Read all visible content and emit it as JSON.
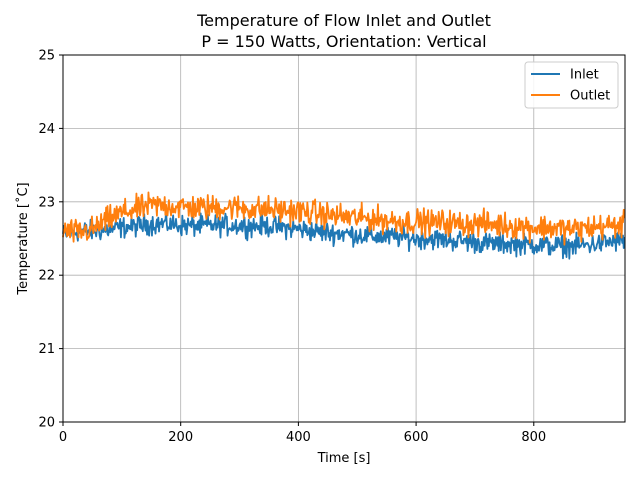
{
  "chart_data": {
    "type": "line",
    "title": "Temperature of Flow Inlet and Outlet",
    "subtitle": "P = 150 Watts, Orientation: Vertical",
    "xlabel": "Time [s]",
    "ylabel": "Temperature [˚C]",
    "xlim": [
      0,
      955
    ],
    "ylim": [
      20,
      25
    ],
    "xticks": [
      0,
      200,
      400,
      600,
      800
    ],
    "yticks": [
      20,
      21,
      22,
      23,
      24,
      25
    ],
    "xtick_labels": [
      "0",
      "200",
      "400",
      "600",
      "800"
    ],
    "ytick_labels": [
      "20",
      "21",
      "22",
      "23",
      "24",
      "25"
    ],
    "grid": true,
    "legend_position": "top-right",
    "series": [
      {
        "name": "Inlet",
        "color": "#1f77b4",
        "x": [
          0,
          25,
          50,
          75,
          100,
          125,
          150,
          175,
          200,
          225,
          250,
          275,
          300,
          325,
          350,
          375,
          400,
          425,
          450,
          475,
          500,
          525,
          550,
          575,
          600,
          625,
          650,
          675,
          700,
          725,
          750,
          775,
          800,
          825,
          850,
          875,
          900,
          925,
          955
        ],
        "y": [
          22.55,
          22.6,
          22.6,
          22.62,
          22.65,
          22.67,
          22.7,
          22.7,
          22.68,
          22.67,
          22.68,
          22.68,
          22.68,
          22.67,
          22.67,
          22.65,
          22.63,
          22.6,
          22.58,
          22.57,
          22.55,
          22.53,
          22.52,
          22.52,
          22.5,
          22.5,
          22.48,
          22.47,
          22.45,
          22.43,
          22.43,
          22.42,
          22.42,
          22.4,
          22.4,
          22.4,
          22.42,
          22.45,
          22.47
        ]
      },
      {
        "name": "Outlet",
        "color": "#ff7f0e",
        "x": [
          0,
          25,
          50,
          75,
          100,
          125,
          150,
          175,
          200,
          225,
          250,
          275,
          300,
          325,
          350,
          375,
          400,
          425,
          450,
          475,
          500,
          525,
          550,
          575,
          600,
          625,
          650,
          675,
          700,
          725,
          750,
          775,
          800,
          825,
          850,
          875,
          900,
          925,
          955
        ],
        "y": [
          22.6,
          22.58,
          22.62,
          22.75,
          22.85,
          22.9,
          22.95,
          22.95,
          22.93,
          22.92,
          22.92,
          22.93,
          22.92,
          22.9,
          22.9,
          22.88,
          22.87,
          22.85,
          22.82,
          22.8,
          22.78,
          22.77,
          22.75,
          22.73,
          22.73,
          22.72,
          22.72,
          22.7,
          22.7,
          22.7,
          22.68,
          22.67,
          22.65,
          22.65,
          22.63,
          22.63,
          22.65,
          22.67,
          22.68
        ]
      }
    ]
  }
}
